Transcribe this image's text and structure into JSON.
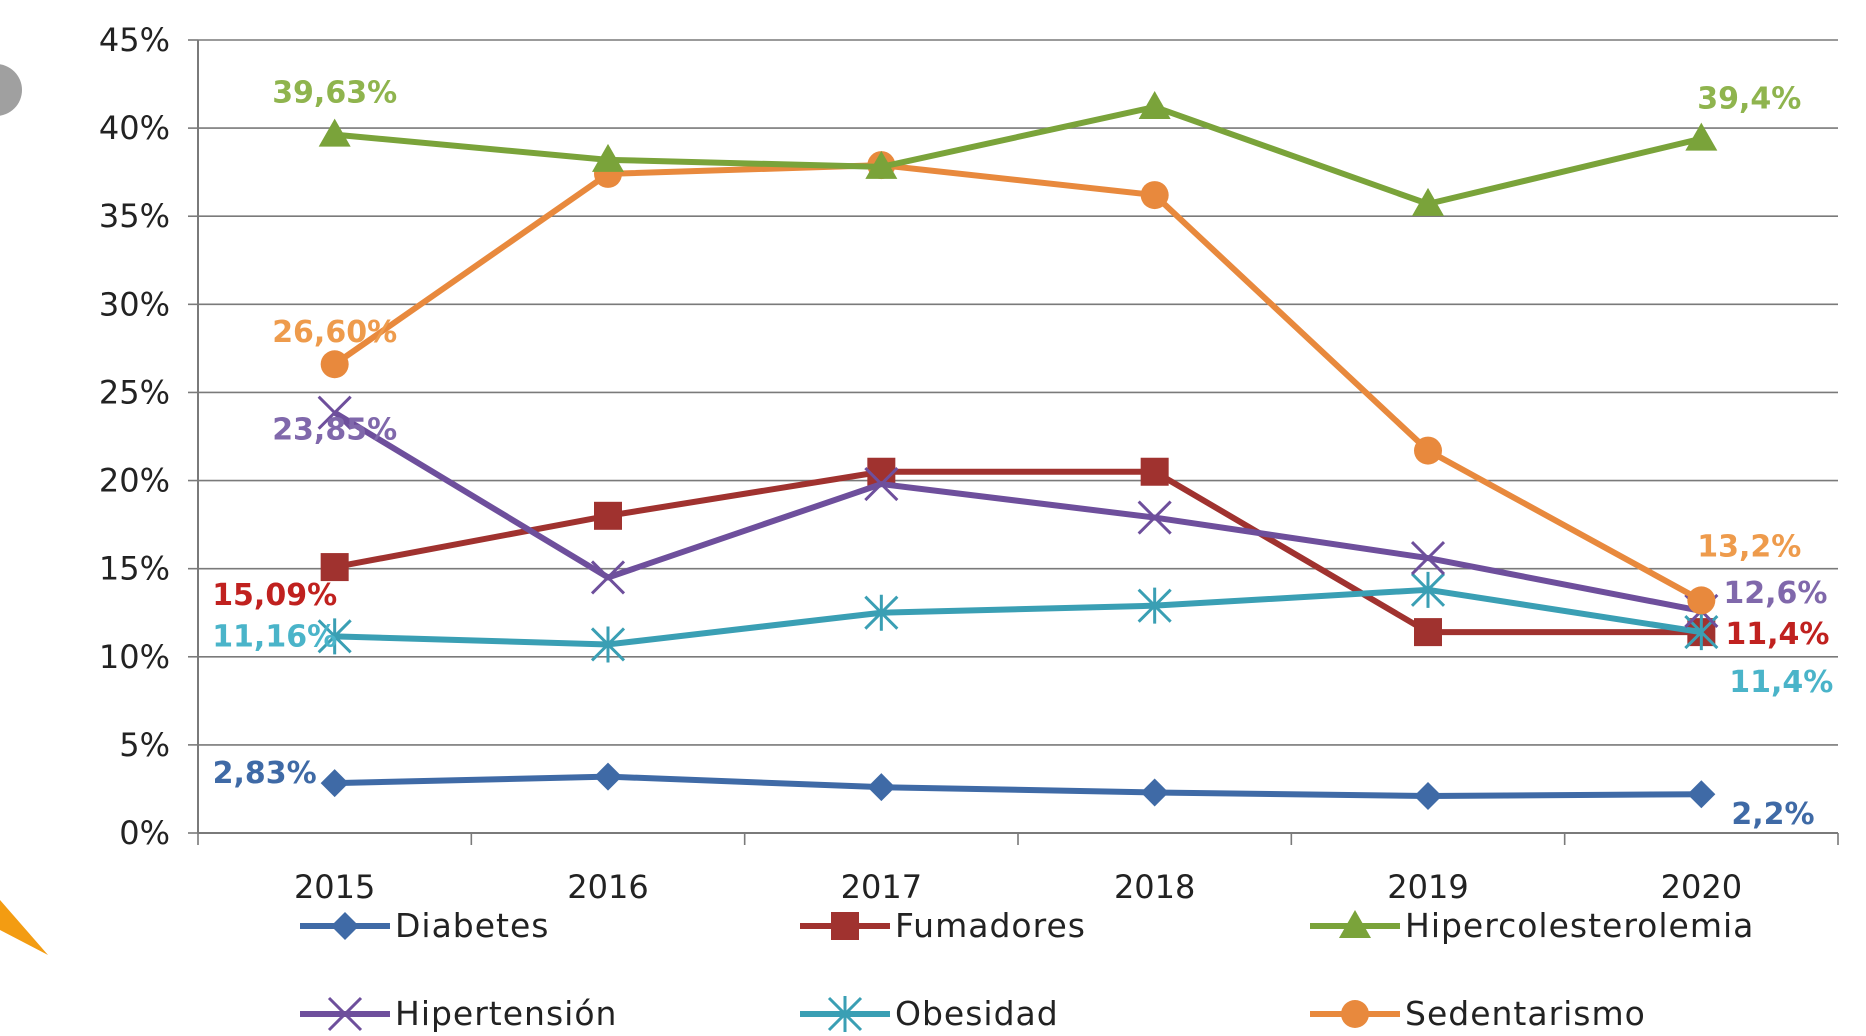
{
  "chart_data": {
    "type": "line",
    "categories": [
      "2015",
      "2016",
      "2017",
      "2018",
      "2019",
      "2020"
    ],
    "ylim": [
      0,
      45
    ],
    "yticks": [
      "0%",
      "5%",
      "10%",
      "15%",
      "20%",
      "25%",
      "30%",
      "35%",
      "40%",
      "45%"
    ],
    "grid": true,
    "legend": "bottom",
    "series": [
      {
        "name": "Diabetes",
        "color": "#3f6aa6",
        "marker": "diamond",
        "values": [
          2.83,
          3.2,
          2.6,
          2.3,
          2.1,
          2.2
        ]
      },
      {
        "name": "Fumadores",
        "color": "#a0322f",
        "marker": "square",
        "values": [
          15.09,
          18.0,
          20.5,
          20.5,
          11.4,
          11.4
        ]
      },
      {
        "name": "Hipercolesterolemia",
        "color": "#7aa33a",
        "marker": "triangle",
        "values": [
          39.63,
          38.2,
          37.8,
          41.2,
          35.7,
          39.4
        ]
      },
      {
        "name": "Hipertensión",
        "color": "#6e4f9c",
        "marker": "x",
        "values": [
          23.85,
          14.5,
          19.8,
          17.9,
          15.6,
          12.6
        ]
      },
      {
        "name": "Obesidad",
        "color": "#3a9fb4",
        "marker": "star",
        "values": [
          11.16,
          10.7,
          12.5,
          12.9,
          13.8,
          11.4
        ]
      },
      {
        "name": "Sedentarismo",
        "color": "#e8893d",
        "marker": "circle",
        "values": [
          26.6,
          37.4,
          37.9,
          36.2,
          21.7,
          13.2
        ]
      }
    ],
    "annotations": [
      {
        "text": "39,63%",
        "color": "#8fb44e"
      },
      {
        "text": "39,4%",
        "color": "#8fb44e"
      },
      {
        "text": "26,60%",
        "color": "#ee9b4c"
      },
      {
        "text": "13,2%",
        "color": "#ee9b4c"
      },
      {
        "text": "23,85%",
        "color": "#8068ab"
      },
      {
        "text": "12,6%",
        "color": "#8068ab"
      },
      {
        "text": "15,09%",
        "color": "#c0211f"
      },
      {
        "text": "11,4%",
        "color": "#c0211f"
      },
      {
        "text": "11,16%",
        "color": "#4ab4c9"
      },
      {
        "text": "11,4%",
        "color": "#4ab4c9"
      },
      {
        "text": "2,83%",
        "color": "#3f6aa6"
      },
      {
        "text": "2,2%",
        "color": "#3f6aa6"
      }
    ]
  },
  "decor": {
    "arrow_color": "#f39c12",
    "bullet_color": "#a0a0a0"
  }
}
